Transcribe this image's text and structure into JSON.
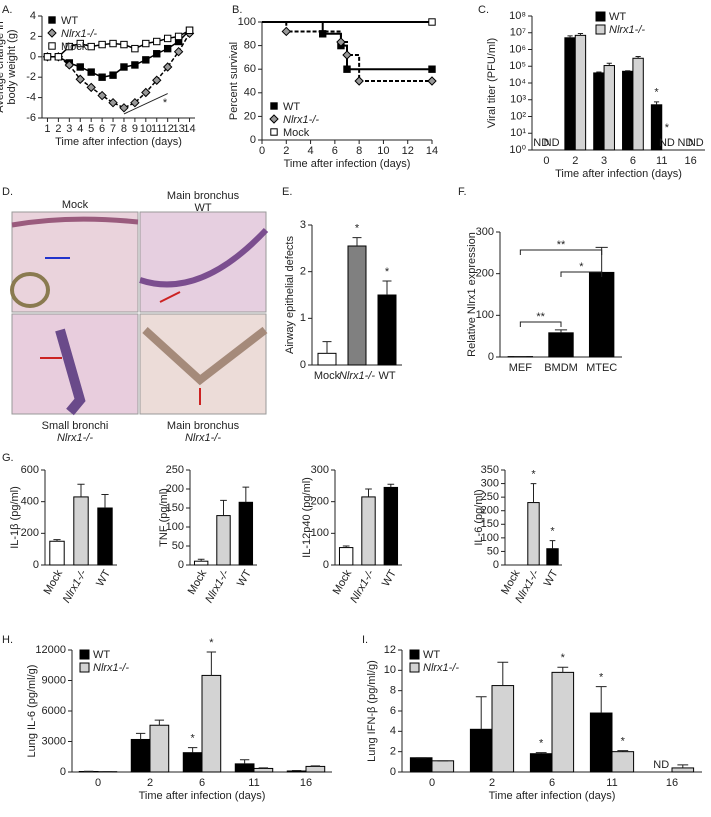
{
  "chart_data": [
    {
      "panel": "A.",
      "type": "line",
      "ylabel": [
        "Average change in",
        "body weight (g)"
      ],
      "xlabel": "Time after infection (days)",
      "x": [
        1,
        2,
        3,
        4,
        5,
        6,
        7,
        8,
        9,
        10,
        11,
        12,
        13,
        14
      ],
      "xlim": [
        0.5,
        14.5
      ],
      "xticks": [
        1,
        2,
        3,
        4,
        5,
        6,
        7,
        8,
        9,
        10,
        11,
        12,
        13,
        14
      ],
      "ylim": [
        -6,
        4
      ],
      "yticks": [
        -6,
        -4,
        -2,
        0,
        2,
        4
      ],
      "series": [
        {
          "name": "WT",
          "color": "#000000",
          "marker": "square",
          "fill": "#000000",
          "dash": false,
          "values": [
            0,
            0,
            -0.6,
            -1.0,
            -1.5,
            -2.0,
            -1.8,
            -1.0,
            -0.8,
            -0.3,
            0.3,
            0.8,
            1.5,
            2.6
          ]
        },
        {
          "name": "Nlrx1-/-",
          "color": "#000000",
          "marker": "diamond",
          "fill": "#999999",
          "dash": true,
          "values": [
            0,
            0,
            -0.8,
            -2.2,
            -3.0,
            -3.8,
            -4.5,
            -5.0,
            -4.5,
            -3.5,
            -2.3,
            -1.0,
            0.5,
            2.3
          ]
        },
        {
          "name": "Mock",
          "color": "#000000",
          "marker": "square",
          "fill": "#ffffff",
          "dash": false,
          "values": [
            0,
            0,
            1.0,
            1.3,
            1.0,
            1.2,
            1.3,
            1.2,
            0.8,
            1.3,
            1.5,
            1.8,
            2.0,
            2.6
          ]
        }
      ],
      "annotations": [
        "*"
      ]
    },
    {
      "panel": "B.",
      "type": "step",
      "ylabel": [
        "Percent survival"
      ],
      "xlabel": "Time after infection (days)",
      "xlim": [
        0,
        14
      ],
      "xticks": [
        0,
        2,
        4,
        6,
        8,
        10,
        12,
        14
      ],
      "ylim": [
        0,
        100
      ],
      "yticks": [
        0,
        20,
        40,
        60,
        80,
        100
      ],
      "series": [
        {
          "name": "WT",
          "color": "#000000",
          "marker": "square",
          "fill": "#000000",
          "dash": false,
          "x": [
            0,
            5,
            6.5,
            7,
            14
          ],
          "values": [
            100,
            90,
            80,
            60,
            60
          ]
        },
        {
          "name": "Nlrx1-/-",
          "color": "#000000",
          "marker": "diamond",
          "fill": "#999999",
          "dash": true,
          "x": [
            0,
            2,
            6.5,
            7,
            8,
            14
          ],
          "values": [
            100,
            92,
            83,
            72,
            50,
            50
          ]
        },
        {
          "name": "Mock",
          "color": "#000000",
          "marker": "square",
          "fill": "#ffffff",
          "dash": false,
          "x": [
            0,
            14
          ],
          "values": [
            100,
            100
          ]
        }
      ]
    },
    {
      "panel": "C.",
      "type": "bar",
      "log": true,
      "ylabel": [
        "Viral titer (PFU/ml)"
      ],
      "xlabel": "Time after infection (days)",
      "categories": [
        "0",
        "2",
        "3",
        "6",
        "11",
        "16"
      ],
      "ylim": [
        1,
        100000000
      ],
      "yticks": [
        {
          "value": 1,
          "label": "10⁰"
        },
        {
          "value": 10,
          "label": "10¹"
        },
        {
          "value": 100,
          "label": "10²"
        },
        {
          "value": 1000,
          "label": "10³"
        },
        {
          "value": 10000,
          "label": "10⁴"
        },
        {
          "value": 100000,
          "label": "10⁵"
        },
        {
          "value": 1000000,
          "label": "10⁶"
        },
        {
          "value": 10000000,
          "label": "10⁷"
        },
        {
          "value": 100000000,
          "label": "10⁸"
        }
      ],
      "series": [
        {
          "name": "WT",
          "color": "#000000",
          "values": [
            null,
            5000000,
            40000,
            50000,
            500,
            null
          ],
          "errors": [
            null,
            1500000,
            5000,
            4000,
            250,
            null
          ],
          "value_labels": [
            "ND",
            null,
            null,
            null,
            null,
            "ND"
          ]
        },
        {
          "name": "Nlrx1-/-",
          "color": "#d3d3d3",
          "values": [
            null,
            7000000,
            110000,
            300000,
            null,
            null
          ],
          "errors": [
            null,
            2000000,
            40000,
            80000,
            null,
            null
          ],
          "value_labels": [
            "ND",
            null,
            null,
            null,
            "ND",
            "ND"
          ]
        }
      ],
      "annotations": [
        "*",
        "*"
      ]
    },
    {
      "panel": "E.",
      "type": "bar",
      "ylabel": [
        "Airway epithelial defects"
      ],
      "categories": [
        "Mock",
        "Nlrx1-/-",
        "WT"
      ],
      "values": [
        0.25,
        2.55,
        1.5
      ],
      "errors": [
        0.25,
        0.18,
        0.3
      ],
      "colors": [
        "#ffffff",
        "#808080",
        "#000000"
      ],
      "ylim": [
        0,
        3
      ],
      "yticks": [
        0,
        1,
        2,
        3
      ],
      "annotations": [
        "*",
        "*"
      ]
    },
    {
      "panel": "F.",
      "type": "bar",
      "ylabel": [
        "Relative Nlrx1 expression"
      ],
      "categories": [
        "MEF",
        "BMDM",
        "MTEC"
      ],
      "values": [
        1,
        58,
        203
      ],
      "errors": [
        0,
        7,
        60
      ],
      "colors": [
        "#000000",
        "#000000",
        "#000000"
      ],
      "ylim": [
        0,
        300
      ],
      "yticks": [
        0,
        100,
        200,
        300
      ],
      "annotations": [
        "**",
        "*",
        "**"
      ]
    },
    {
      "panel": "G.",
      "type": "bar",
      "ylabel": [
        "IL-1β (pg/ml)"
      ],
      "categories": [
        "Mock",
        "Nlrx1-/-",
        "WT"
      ],
      "values": [
        150,
        430,
        360
      ],
      "errors": [
        10,
        80,
        85
      ],
      "colors": [
        "#ffffff",
        "#d3d3d3",
        "#000000"
      ],
      "ylim": [
        0,
        600
      ],
      "yticks": [
        0,
        200,
        400,
        600
      ]
    },
    {
      "type": "bar",
      "ylabel": [
        "TNF (pg/ml)"
      ],
      "categories": [
        "Mock",
        "Nlrx1-/-",
        "WT"
      ],
      "values": [
        10,
        130,
        165
      ],
      "errors": [
        5,
        40,
        40
      ],
      "colors": [
        "#ffffff",
        "#d3d3d3",
        "#000000"
      ],
      "ylim": [
        0,
        250
      ],
      "yticks": [
        0,
        50,
        100,
        150,
        200,
        250
      ]
    },
    {
      "type": "bar",
      "ylabel": [
        "IL-12p40 (pg/ml)"
      ],
      "categories": [
        "Mock",
        "Nlrx1-/-",
        "WT"
      ],
      "values": [
        55,
        215,
        245
      ],
      "errors": [
        5,
        25,
        10
      ],
      "colors": [
        "#ffffff",
        "#d3d3d3",
        "#000000"
      ],
      "ylim": [
        0,
        300
      ],
      "yticks": [
        0,
        100,
        200,
        300
      ]
    },
    {
      "type": "bar",
      "ylabel": [
        "IL-6 (pg/ml)"
      ],
      "categories": [
        "Mock",
        "Nlrx1-/-",
        "WT"
      ],
      "values": [
        0,
        230,
        60
      ],
      "errors": [
        0,
        70,
        30
      ],
      "colors": [
        "#ffffff",
        "#d3d3d3",
        "#000000"
      ],
      "ylim": [
        0,
        350
      ],
      "yticks": [
        0,
        50,
        100,
        150,
        200,
        250,
        300,
        350
      ],
      "annotations": [
        "*",
        "*"
      ]
    },
    {
      "panel": "H.",
      "type": "bar",
      "ylabel": [
        "Lung IL-6 (pg/ml/g)"
      ],
      "xlabel": "Time after infection (days)",
      "categories": [
        "0",
        "2",
        "6",
        "11",
        "16"
      ],
      "ylim": [
        0,
        12000
      ],
      "yticks": [
        0,
        3000,
        6000,
        9000,
        12000
      ],
      "series": [
        {
          "name": "WT",
          "color": "#000000",
          "values": [
            50,
            3200,
            1900,
            800,
            100
          ],
          "errors": [
            20,
            600,
            500,
            400,
            50
          ]
        },
        {
          "name": "Nlrx1-/-",
          "color": "#d3d3d3",
          "values": [
            30,
            4600,
            9500,
            350,
            550
          ],
          "errors": [
            10,
            500,
            2300,
            50,
            50
          ]
        }
      ],
      "annotations": [
        "*",
        "*"
      ]
    },
    {
      "panel": "I.",
      "type": "bar",
      "ylabel": [
        "Lung IFN-β (pg/ml/g)"
      ],
      "xlabel": "Time after infection (days)",
      "categories": [
        "0",
        "2",
        "6",
        "11",
        "16"
      ],
      "ylim": [
        0,
        12
      ],
      "yticks": [
        0,
        2,
        4,
        6,
        8,
        10,
        12
      ],
      "series": [
        {
          "name": "WT",
          "color": "#000000",
          "values": [
            1.4,
            4.2,
            1.8,
            5.8,
            null
          ],
          "errors": [
            0,
            3.2,
            0.1,
            2.6,
            null
          ],
          "value_labels": [
            null,
            null,
            null,
            null,
            "ND"
          ]
        },
        {
          "name": "Nlrx1-/-",
          "color": "#d3d3d3",
          "values": [
            1.1,
            8.5,
            9.8,
            2.0,
            0.4
          ],
          "errors": [
            0,
            2.3,
            0.5,
            0.1,
            0.3
          ]
        }
      ],
      "annotations": [
        "*",
        "*",
        "*",
        "*"
      ]
    }
  ],
  "image_panel": {
    "panel": "D.",
    "labels": [
      [
        "Mock"
      ],
      [
        "Main bronchus",
        "WT"
      ],
      [
        "Small bronchi",
        "Nlrx1-/-"
      ],
      [
        "Main bronchus",
        "Nlrx1-/-"
      ]
    ]
  }
}
